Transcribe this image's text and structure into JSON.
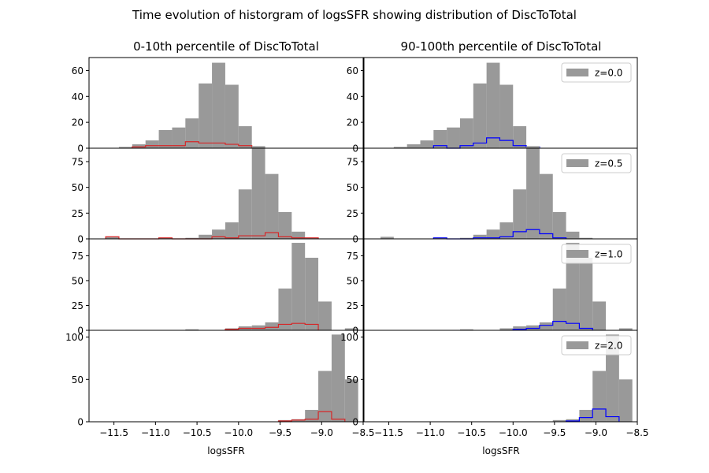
{
  "title": "Time evolution of historgram of logsSFR showing distribution of DiscToTotal",
  "column_titles": [
    "0-10th percentile of DiscToTotal",
    "90-100th percentile of DiscToTotal"
  ],
  "xlabel": "logsSFR",
  "colors": {
    "hist_fill": "#999999",
    "low_line": "#d62728",
    "high_line": "#0000ff"
  },
  "chart_data": [
    {
      "type": "bar",
      "row_label": "z=0.0",
      "panel": "0-10th percentile of DiscToTotal",
      "legend_shown": false,
      "xlim": [
        -11.8,
        -8.5
      ],
      "ylim": [
        0,
        70
      ],
      "xticks": [
        -11.5,
        -11.0,
        -10.5,
        -10.0,
        -9.5,
        -9.0,
        -8.5
      ],
      "yticks": [
        0,
        20,
        40,
        60
      ],
      "bin_edges": [
        -11.6,
        -11.44,
        -11.28,
        -11.12,
        -10.96,
        -10.8,
        -10.64,
        -10.48,
        -10.32,
        -10.16,
        -10.0,
        -9.84,
        -9.68,
        -9.52,
        -9.36,
        -9.2,
        -9.04,
        -8.88,
        -8.72,
        -8.56
      ],
      "all_counts": [
        0,
        1,
        3,
        6,
        14,
        16,
        23,
        50,
        66,
        49,
        17,
        1,
        0,
        0,
        0,
        0,
        0,
        0,
        0
      ],
      "subset_counts": [
        0,
        0,
        1,
        2,
        2,
        2,
        5,
        4,
        4,
        3,
        2,
        0,
        0,
        0,
        0,
        0,
        0,
        0,
        0
      ]
    },
    {
      "type": "bar",
      "row_label": "z=0.0",
      "panel": "90-100th percentile of DiscToTotal",
      "legend_shown": true,
      "legend": "z=0.0",
      "xlim": [
        -11.8,
        -8.5
      ],
      "ylim": [
        0,
        70
      ],
      "xticks": [
        -11.5,
        -11.0,
        -10.5,
        -10.0,
        -9.5,
        -9.0,
        -8.5
      ],
      "yticks": [
        0,
        20,
        40,
        60
      ],
      "bin_edges": [
        -11.6,
        -11.44,
        -11.28,
        -11.12,
        -10.96,
        -10.8,
        -10.64,
        -10.48,
        -10.32,
        -10.16,
        -10.0,
        -9.84,
        -9.68,
        -9.52,
        -9.36,
        -9.2,
        -9.04,
        -8.88,
        -8.72,
        -8.56
      ],
      "all_counts": [
        0,
        1,
        3,
        6,
        14,
        16,
        23,
        50,
        66,
        49,
        17,
        1,
        0,
        0,
        0,
        0,
        0,
        0,
        0
      ],
      "subset_counts": [
        0,
        0,
        0,
        0,
        2,
        0,
        2,
        4,
        8,
        6,
        2,
        1,
        0,
        0,
        0,
        0,
        0,
        0,
        0
      ]
    },
    {
      "type": "bar",
      "row_label": "z=0.5",
      "panel": "0-10th percentile of DiscToTotal",
      "legend_shown": false,
      "xlim": [
        -11.8,
        -8.5
      ],
      "ylim": [
        0,
        88
      ],
      "xticks": [
        -11.5,
        -11.0,
        -10.5,
        -10.0,
        -9.5,
        -9.0,
        -8.5
      ],
      "yticks": [
        0,
        25,
        50,
        75
      ],
      "bin_edges": [
        -11.6,
        -11.44,
        -11.28,
        -11.12,
        -10.96,
        -10.8,
        -10.64,
        -10.48,
        -10.32,
        -10.16,
        -10.0,
        -9.84,
        -9.68,
        -9.52,
        -9.36,
        -9.2,
        -9.04,
        -8.88,
        -8.72,
        -8.56
      ],
      "all_counts": [
        2,
        0,
        0,
        0,
        1,
        0,
        1,
        4,
        9,
        16,
        48,
        90,
        63,
        26,
        7,
        1,
        0,
        0,
        0
      ],
      "subset_counts": [
        2,
        0,
        0,
        0,
        1,
        0,
        0,
        0,
        2,
        1,
        3,
        3,
        6,
        2,
        1,
        1,
        0,
        0,
        0
      ]
    },
    {
      "type": "bar",
      "row_label": "z=0.5",
      "panel": "90-100th percentile of DiscToTotal",
      "legend_shown": true,
      "legend": "z=0.5",
      "xlim": [
        -11.8,
        -8.5
      ],
      "ylim": [
        0,
        88
      ],
      "xticks": [
        -11.5,
        -11.0,
        -10.5,
        -10.0,
        -9.5,
        -9.0,
        -8.5
      ],
      "yticks": [
        0,
        25,
        50,
        75
      ],
      "bin_edges": [
        -11.6,
        -11.44,
        -11.28,
        -11.12,
        -10.96,
        -10.8,
        -10.64,
        -10.48,
        -10.32,
        -10.16,
        -10.0,
        -9.84,
        -9.68,
        -9.52,
        -9.36,
        -9.2,
        -9.04,
        -8.88,
        -8.72,
        -8.56
      ],
      "all_counts": [
        2,
        0,
        0,
        0,
        1,
        0,
        1,
        4,
        9,
        16,
        48,
        90,
        63,
        26,
        7,
        1,
        0,
        0,
        0
      ],
      "subset_counts": [
        0,
        0,
        0,
        0,
        1,
        0,
        0,
        1,
        1,
        2,
        7,
        9,
        5,
        1,
        0,
        0,
        0,
        0,
        0
      ]
    },
    {
      "type": "bar",
      "row_label": "z=1.0",
      "panel": "0-10th percentile of DiscToTotal",
      "legend_shown": false,
      "xlim": [
        -11.8,
        -8.5
      ],
      "ylim": [
        0,
        92
      ],
      "xticks": [
        -11.5,
        -11.0,
        -10.5,
        -10.0,
        -9.5,
        -9.0,
        -8.5
      ],
      "yticks": [
        0,
        25,
        50,
        75
      ],
      "bin_edges": [
        -11.6,
        -11.44,
        -11.28,
        -11.12,
        -10.96,
        -10.8,
        -10.64,
        -10.48,
        -10.32,
        -10.16,
        -10.0,
        -9.84,
        -9.68,
        -9.52,
        -9.36,
        -9.2,
        -9.04,
        -8.88,
        -8.72,
        -8.56
      ],
      "all_counts": [
        0,
        0,
        0,
        0,
        0,
        0,
        1,
        0,
        0,
        2,
        4,
        5,
        8,
        42,
        88,
        73,
        29,
        0,
        2
      ],
      "subset_counts": [
        0,
        0,
        0,
        0,
        0,
        0,
        0,
        0,
        0,
        1,
        2,
        2,
        3,
        6,
        7,
        6,
        0,
        0,
        0
      ]
    },
    {
      "type": "bar",
      "row_label": "z=1.0",
      "panel": "90-100th percentile of DiscToTotal",
      "legend_shown": true,
      "legend": "z=1.0",
      "xlim": [
        -11.8,
        -8.5
      ],
      "ylim": [
        0,
        92
      ],
      "xticks": [
        -11.5,
        -11.0,
        -10.5,
        -10.0,
        -9.5,
        -9.0,
        -8.5
      ],
      "yticks": [
        0,
        25,
        50,
        75
      ],
      "bin_edges": [
        -11.6,
        -11.44,
        -11.28,
        -11.12,
        -10.96,
        -10.8,
        -10.64,
        -10.48,
        -10.32,
        -10.16,
        -10.0,
        -9.84,
        -9.68,
        -9.52,
        -9.36,
        -9.2,
        -9.04,
        -8.88,
        -8.72,
        -8.56
      ],
      "all_counts": [
        0,
        0,
        0,
        0,
        0,
        0,
        1,
        0,
        0,
        2,
        4,
        5,
        8,
        42,
        88,
        73,
        29,
        0,
        2
      ],
      "subset_counts": [
        0,
        0,
        0,
        0,
        0,
        0,
        0,
        0,
        0,
        0,
        1,
        2,
        5,
        9,
        7,
        2,
        0,
        0,
        0
      ]
    },
    {
      "type": "bar",
      "row_label": "z=2.0",
      "panel": "0-10th percentile of DiscToTotal",
      "legend_shown": false,
      "xlim": [
        -11.8,
        -8.5
      ],
      "ylim": [
        0,
        108
      ],
      "xticks": [
        -11.5,
        -11.0,
        -10.5,
        -10.0,
        -9.5,
        -9.0,
        -8.5
      ],
      "yticks": [
        0,
        50,
        100
      ],
      "bin_edges": [
        -11.6,
        -11.44,
        -11.28,
        -11.12,
        -10.96,
        -10.8,
        -10.64,
        -10.48,
        -10.32,
        -10.16,
        -10.0,
        -9.84,
        -9.68,
        -9.52,
        -9.36,
        -9.2,
        -9.04,
        -8.88,
        -8.72,
        -8.56
      ],
      "all_counts": [
        0,
        0,
        0,
        0,
        0,
        0,
        0,
        0,
        0,
        0,
        0,
        0,
        0,
        2,
        3,
        14,
        60,
        103,
        50
      ],
      "subset_counts": [
        0,
        0,
        0,
        0,
        0,
        0,
        0,
        0,
        0,
        0,
        0,
        0,
        0,
        1,
        2,
        3,
        12,
        3,
        0
      ]
    },
    {
      "type": "bar",
      "row_label": "z=2.0",
      "panel": "90-100th percentile of DiscToTotal",
      "legend_shown": true,
      "legend": "z=2.0",
      "xlim": [
        -11.8,
        -8.5
      ],
      "ylim": [
        0,
        108
      ],
      "xticks": [
        -11.5,
        -11.0,
        -10.5,
        -10.0,
        -9.5,
        -9.0,
        -8.5
      ],
      "yticks": [
        0,
        50,
        100
      ],
      "bin_edges": [
        -11.6,
        -11.44,
        -11.28,
        -11.12,
        -10.96,
        -10.8,
        -10.64,
        -10.48,
        -10.32,
        -10.16,
        -10.0,
        -9.84,
        -9.68,
        -9.52,
        -9.36,
        -9.2,
        -9.04,
        -8.88,
        -8.72,
        -8.56
      ],
      "all_counts": [
        0,
        0,
        0,
        0,
        0,
        0,
        0,
        0,
        0,
        0,
        0,
        0,
        0,
        2,
        3,
        14,
        60,
        103,
        50
      ],
      "subset_counts": [
        0,
        0,
        0,
        0,
        0,
        0,
        0,
        0,
        0,
        0,
        0,
        0,
        0,
        0,
        1,
        5,
        15,
        6,
        0
      ]
    }
  ]
}
